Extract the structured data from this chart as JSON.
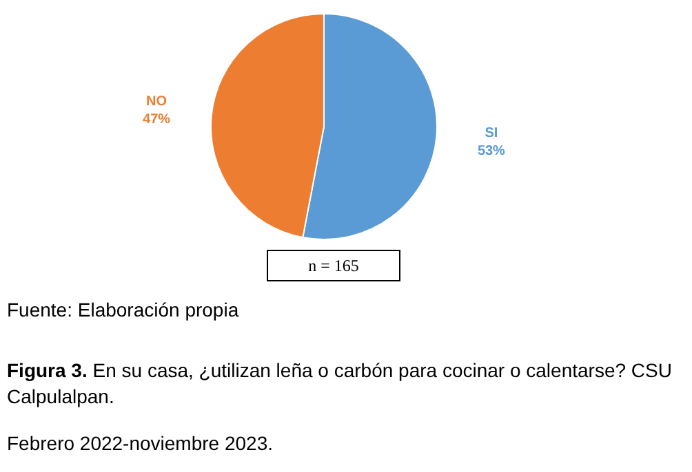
{
  "chart_data": {
    "type": "pie",
    "title": "Figura 3. En su casa, ¿utilizan leña o carbón para cocinar o calentarse? CSU Calpulalpan.",
    "subtitle": "Febrero 2022-noviembre 2023.",
    "categories": [
      "SI",
      "NO"
    ],
    "values": [
      53,
      47
    ],
    "colors": [
      "#5b9bd5",
      "#ed7d31"
    ],
    "value_labels": [
      "53%",
      "47%"
    ],
    "annotations": [
      "n = 165",
      "Fuente: Elaboración propia"
    ]
  }
}
